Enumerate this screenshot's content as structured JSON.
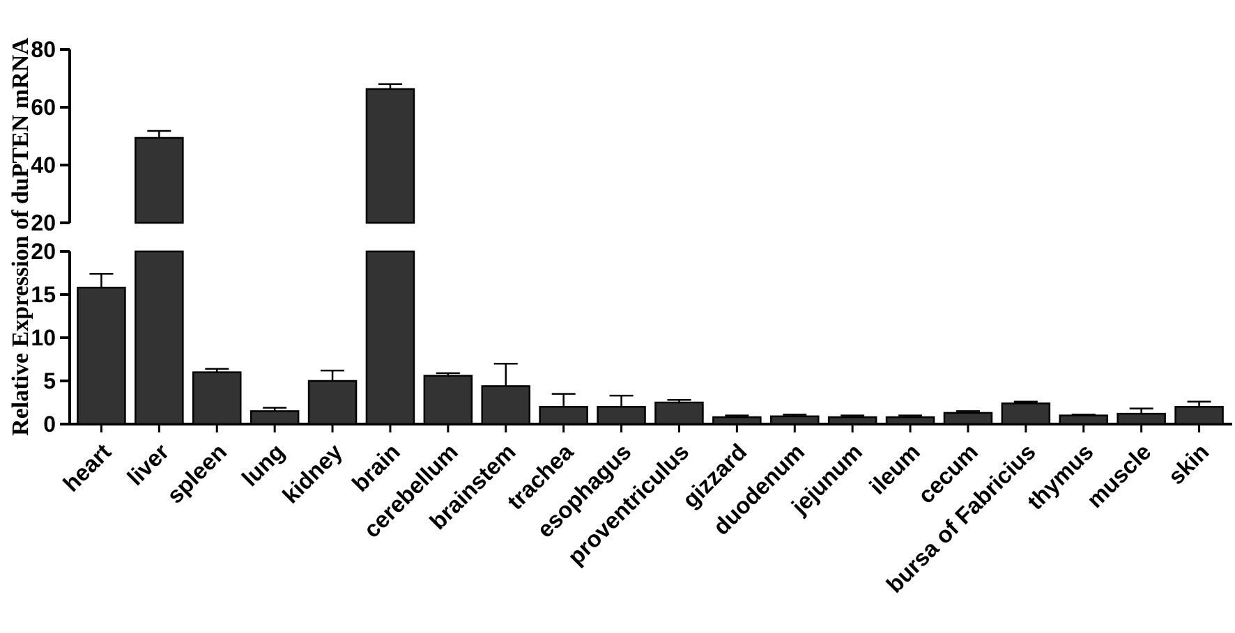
{
  "chart_data": {
    "type": "bar",
    "ylabel": "Relative Expression of duPTEN mRNA",
    "y_axis_break": true,
    "ylim_lower": [
      0,
      20
    ],
    "ylim_upper": [
      20,
      80
    ],
    "yticks_lower": [
      "0",
      "5",
      "10",
      "15",
      "20"
    ],
    "yticks_upper": [
      "20",
      "40",
      "60",
      "80"
    ],
    "bar_color": "#333333",
    "categories": [
      "heart",
      "liver",
      "spleen",
      "lung",
      "kidney",
      "brain",
      "cerebellum",
      "brainstem",
      "trachea",
      "esophagus",
      "proventriculus",
      "gizzard",
      "duodenum",
      "jejunum",
      "ileum",
      "cecum",
      "bursa of Fabricius",
      "thymus",
      "muscle",
      "skin"
    ],
    "values": [
      15.8,
      49.4,
      6.0,
      1.5,
      5.0,
      66.3,
      5.6,
      4.4,
      2.0,
      2.0,
      2.5,
      0.8,
      0.9,
      0.8,
      0.8,
      1.3,
      2.4,
      1.0,
      1.2,
      2.0
    ],
    "errors": [
      1.6,
      2.4,
      0.4,
      0.4,
      1.2,
      1.7,
      0.3,
      2.6,
      1.5,
      1.3,
      0.3,
      0.2,
      0.2,
      0.2,
      0.2,
      0.2,
      0.2,
      0.1,
      0.6,
      0.6
    ]
  }
}
